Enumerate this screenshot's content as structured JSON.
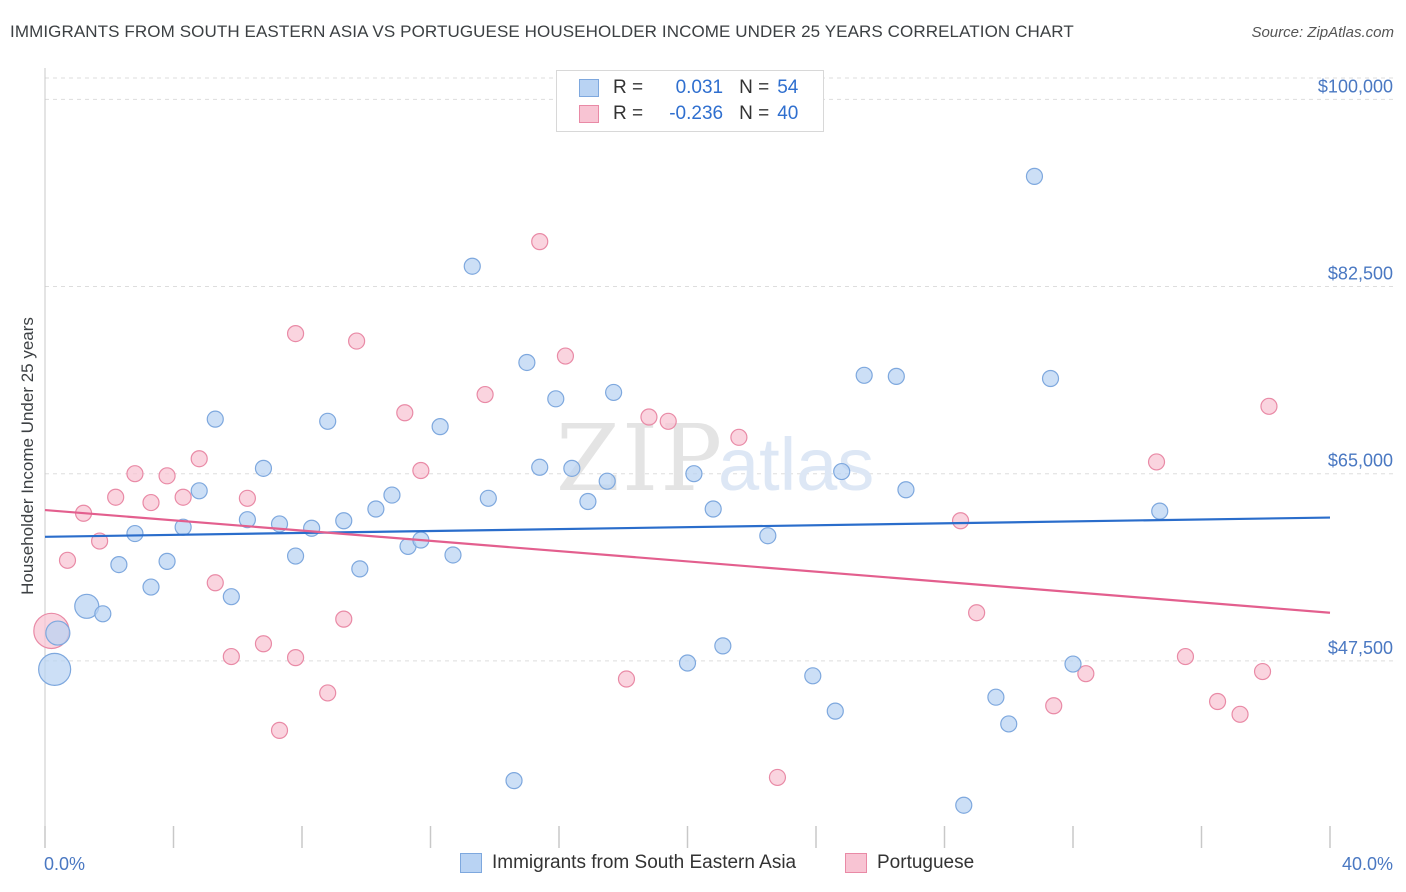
{
  "title": "IMMIGRANTS FROM SOUTH EASTERN ASIA VS PORTUGUESE HOUSEHOLDER INCOME UNDER 25 YEARS CORRELATION CHART",
  "source": "Source: ZipAtlas.com",
  "watermark": {
    "zip": "ZIP",
    "atlas": "atlas"
  },
  "legend": {
    "rows": [
      {
        "r_label": "R =",
        "r_value": "0.031",
        "n_label": "N =",
        "n_value": "54"
      },
      {
        "r_label": "R =",
        "r_value": "-0.236",
        "n_label": "N =",
        "n_value": "40"
      }
    ]
  },
  "bottom_legend": [
    "Immigrants from South Eastern Asia",
    "Portuguese"
  ],
  "colors": {
    "blue_fill": "#b9d3f3",
    "blue_stroke": "#7ea8de",
    "blue_line": "#2a6dcb",
    "pink_fill": "#f8c4d3",
    "pink_stroke": "#e98aa6",
    "pink_line": "#e35f8e",
    "axis_text": "#4a78c2",
    "grid": "#dddddd"
  },
  "chart_data": {
    "type": "scatter",
    "title": "IMMIGRANTS FROM SOUTH EASTERN ASIA VS PORTUGUESE HOUSEHOLDER INCOME UNDER 25 YEARS CORRELATION CHART",
    "xlabel": "",
    "ylabel": "Householder Income Under 25 years",
    "xlim": [
      0,
      40
    ],
    "ylim": [
      30000,
      102000
    ],
    "x_tick_labels": [
      "0.0%",
      "40.0%"
    ],
    "y_ticks": [
      47500,
      65000,
      82500,
      100000
    ],
    "y_tick_labels": [
      "$47,500",
      "$65,000",
      "$82,500",
      "$100,000"
    ],
    "grid": true,
    "legend_position": "top-center",
    "series": [
      {
        "name": "Immigrants from South Eastern Asia",
        "color": "#7ea8de",
        "trend": {
          "x": [
            0,
            40
          ],
          "y": [
            59100,
            60900
          ]
        },
        "points": [
          {
            "x": 0.3,
            "y": 46700,
            "s": 2
          },
          {
            "x": 0.4,
            "y": 50100,
            "s": 1.5
          },
          {
            "x": 1.3,
            "y": 52600,
            "s": 1.5
          },
          {
            "x": 1.8,
            "y": 51900,
            "s": 1
          },
          {
            "x": 2.3,
            "y": 56500,
            "s": 1
          },
          {
            "x": 2.8,
            "y": 59400,
            "s": 1
          },
          {
            "x": 3.3,
            "y": 54400,
            "s": 1
          },
          {
            "x": 3.8,
            "y": 56800,
            "s": 1
          },
          {
            "x": 4.3,
            "y": 60000,
            "s": 1
          },
          {
            "x": 4.8,
            "y": 63400,
            "s": 1
          },
          {
            "x": 5.3,
            "y": 70100,
            "s": 1
          },
          {
            "x": 5.8,
            "y": 53500,
            "s": 1
          },
          {
            "x": 6.3,
            "y": 60700,
            "s": 1
          },
          {
            "x": 6.8,
            "y": 65500,
            "s": 1
          },
          {
            "x": 7.3,
            "y": 60300,
            "s": 1
          },
          {
            "x": 7.8,
            "y": 57300,
            "s": 1
          },
          {
            "x": 8.3,
            "y": 59900,
            "s": 1
          },
          {
            "x": 8.8,
            "y": 69900,
            "s": 1
          },
          {
            "x": 9.3,
            "y": 60600,
            "s": 1
          },
          {
            "x": 9.8,
            "y": 56100,
            "s": 1
          },
          {
            "x": 10.3,
            "y": 61700,
            "s": 1
          },
          {
            "x": 10.8,
            "y": 63000,
            "s": 1
          },
          {
            "x": 11.3,
            "y": 58200,
            "s": 1
          },
          {
            "x": 11.7,
            "y": 58800,
            "s": 1
          },
          {
            "x": 12.3,
            "y": 69400,
            "s": 1
          },
          {
            "x": 12.7,
            "y": 57400,
            "s": 1
          },
          {
            "x": 13.3,
            "y": 84400,
            "s": 1
          },
          {
            "x": 13.8,
            "y": 62700,
            "s": 1
          },
          {
            "x": 14.6,
            "y": 36300,
            "s": 1
          },
          {
            "x": 15.0,
            "y": 75400,
            "s": 1
          },
          {
            "x": 15.4,
            "y": 65600,
            "s": 1
          },
          {
            "x": 15.9,
            "y": 72000,
            "s": 1
          },
          {
            "x": 16.4,
            "y": 65500,
            "s": 1
          },
          {
            "x": 16.9,
            "y": 62400,
            "s": 1
          },
          {
            "x": 17.5,
            "y": 64300,
            "s": 1
          },
          {
            "x": 17.7,
            "y": 72600,
            "s": 1
          },
          {
            "x": 20.0,
            "y": 47300,
            "s": 1
          },
          {
            "x": 20.2,
            "y": 65000,
            "s": 1
          },
          {
            "x": 20.8,
            "y": 61700,
            "s": 1
          },
          {
            "x": 21.1,
            "y": 48900,
            "s": 1
          },
          {
            "x": 22.5,
            "y": 59200,
            "s": 1
          },
          {
            "x": 23.9,
            "y": 46100,
            "s": 1
          },
          {
            "x": 24.6,
            "y": 42800,
            "s": 1
          },
          {
            "x": 24.8,
            "y": 65200,
            "s": 1
          },
          {
            "x": 25.5,
            "y": 74200,
            "s": 1
          },
          {
            "x": 26.5,
            "y": 74100,
            "s": 1
          },
          {
            "x": 26.8,
            "y": 63500,
            "s": 1
          },
          {
            "x": 28.6,
            "y": 34000,
            "s": 1
          },
          {
            "x": 29.6,
            "y": 44100,
            "s": 1
          },
          {
            "x": 30.0,
            "y": 41600,
            "s": 1
          },
          {
            "x": 30.8,
            "y": 92800,
            "s": 1
          },
          {
            "x": 31.3,
            "y": 73900,
            "s": 1
          },
          {
            "x": 32.0,
            "y": 47200,
            "s": 1
          },
          {
            "x": 34.7,
            "y": 61500,
            "s": 1
          }
        ]
      },
      {
        "name": "Portuguese",
        "color": "#e98aa6",
        "trend": {
          "x": [
            0,
            40
          ],
          "y": [
            61600,
            52000
          ]
        },
        "points": [
          {
            "x": 0.2,
            "y": 50300,
            "s": 2.2
          },
          {
            "x": 0.7,
            "y": 56900,
            "s": 1
          },
          {
            "x": 1.2,
            "y": 61300,
            "s": 1
          },
          {
            "x": 1.7,
            "y": 58700,
            "s": 1
          },
          {
            "x": 2.2,
            "y": 62800,
            "s": 1
          },
          {
            "x": 2.8,
            "y": 65000,
            "s": 1
          },
          {
            "x": 3.3,
            "y": 62300,
            "s": 1
          },
          {
            "x": 3.8,
            "y": 64800,
            "s": 1
          },
          {
            "x": 4.3,
            "y": 62800,
            "s": 1
          },
          {
            "x": 4.8,
            "y": 66400,
            "s": 1
          },
          {
            "x": 5.3,
            "y": 54800,
            "s": 1
          },
          {
            "x": 5.8,
            "y": 47900,
            "s": 1
          },
          {
            "x": 6.3,
            "y": 62700,
            "s": 1
          },
          {
            "x": 6.8,
            "y": 49100,
            "s": 1
          },
          {
            "x": 7.3,
            "y": 41000,
            "s": 1
          },
          {
            "x": 7.8,
            "y": 78100,
            "s": 1
          },
          {
            "x": 7.8,
            "y": 47800,
            "s": 1
          },
          {
            "x": 8.8,
            "y": 44500,
            "s": 1
          },
          {
            "x": 9.3,
            "y": 51400,
            "s": 1
          },
          {
            "x": 9.7,
            "y": 77400,
            "s": 1
          },
          {
            "x": 11.2,
            "y": 70700,
            "s": 1
          },
          {
            "x": 11.7,
            "y": 65300,
            "s": 1
          },
          {
            "x": 13.7,
            "y": 72400,
            "s": 1
          },
          {
            "x": 15.4,
            "y": 86700,
            "s": 1
          },
          {
            "x": 16.2,
            "y": 76000,
            "s": 1
          },
          {
            "x": 18.1,
            "y": 45800,
            "s": 1
          },
          {
            "x": 18.8,
            "y": 70300,
            "s": 1
          },
          {
            "x": 19.4,
            "y": 69900,
            "s": 1
          },
          {
            "x": 21.6,
            "y": 68400,
            "s": 1
          },
          {
            "x": 22.8,
            "y": 36600,
            "s": 1
          },
          {
            "x": 28.5,
            "y": 60600,
            "s": 1
          },
          {
            "x": 29.0,
            "y": 52000,
            "s": 1
          },
          {
            "x": 31.4,
            "y": 43300,
            "s": 1
          },
          {
            "x": 32.4,
            "y": 46300,
            "s": 1
          },
          {
            "x": 34.6,
            "y": 66100,
            "s": 1
          },
          {
            "x": 35.5,
            "y": 47900,
            "s": 1
          },
          {
            "x": 36.5,
            "y": 43700,
            "s": 1
          },
          {
            "x": 37.2,
            "y": 42500,
            "s": 1
          },
          {
            "x": 37.9,
            "y": 46500,
            "s": 1
          },
          {
            "x": 38.1,
            "y": 71300,
            "s": 1
          }
        ]
      }
    ]
  }
}
